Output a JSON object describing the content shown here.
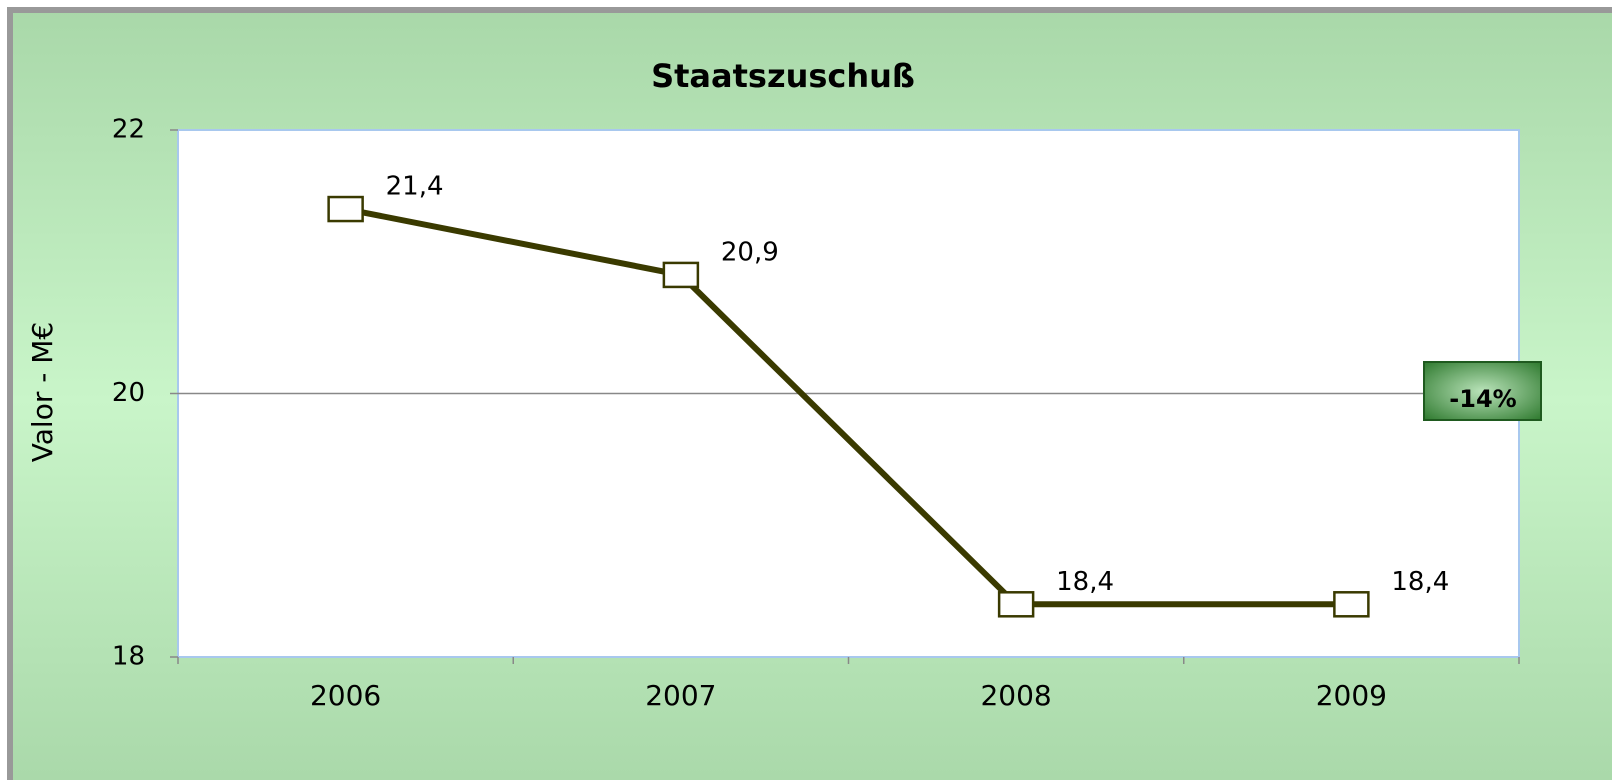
{
  "chart_data": {
    "type": "line",
    "title": "Staatszuschuß",
    "ylabel": "Valor - M€",
    "categories": [
      "2006",
      "2007",
      "2008",
      "2009"
    ],
    "series": [
      {
        "name": "Staatszuschuß",
        "color": "#3a3a00",
        "values": [
          21.4,
          20.9,
          18.4,
          18.4
        ],
        "value_labels": [
          "21,4",
          "20,9",
          "18,4",
          "18,4"
        ]
      }
    ],
    "ylim": [
      18,
      22
    ],
    "yticks": [
      18,
      20,
      22
    ],
    "grid": true,
    "annotation": "-14%"
  }
}
